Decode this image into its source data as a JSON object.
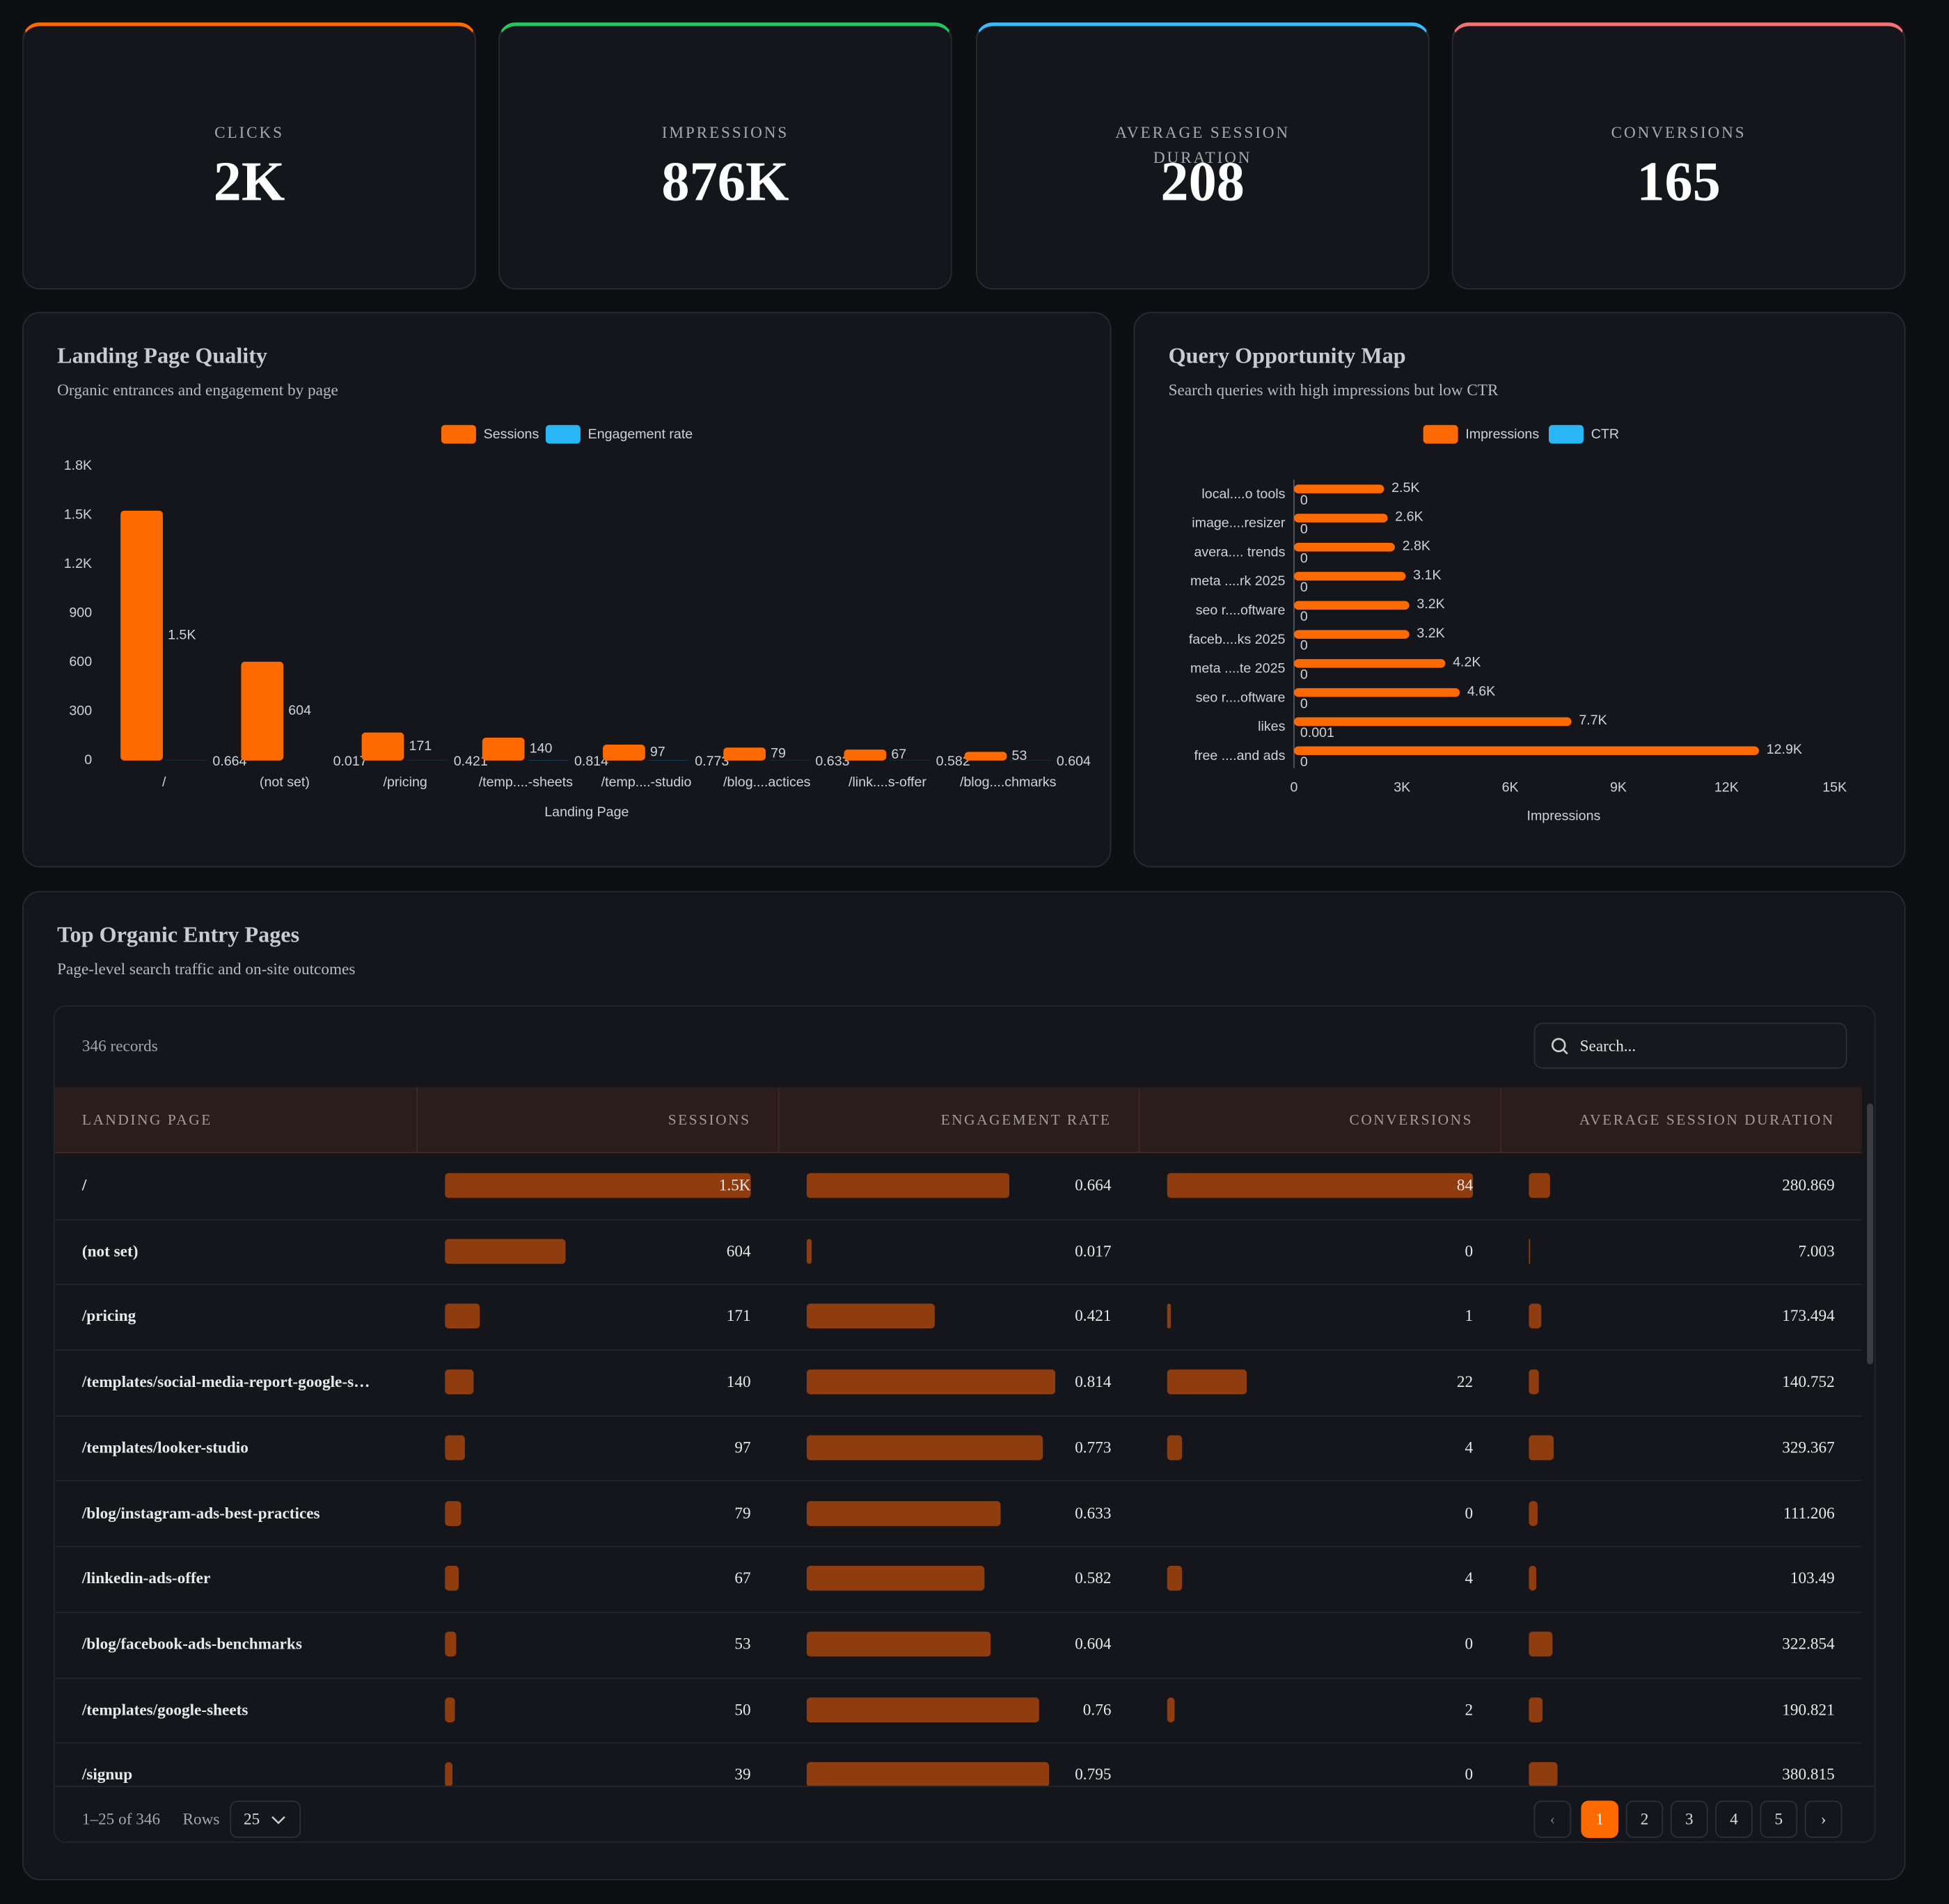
{
  "kpis": [
    {
      "label": "CLICKS",
      "value": "2K"
    },
    {
      "label": "IMPRESSIONS",
      "value": "876K"
    },
    {
      "label": "AVERAGE SESSION DURATION",
      "value": "208"
    },
    {
      "label": "CONVERSIONS",
      "value": "165"
    }
  ],
  "landing_chart": {
    "type": "bar",
    "title": "Landing Page Quality",
    "subtitle": "Organic entrances and engagement by page",
    "x_label": "Landing Page",
    "categories": [
      "/",
      "(not set)",
      "/pricing",
      "/temp....-sheets",
      "/temp....-studio",
      "/blog....actices",
      "/link....s-offer",
      "/blog....chmarks"
    ],
    "series": [
      {
        "name": "Sessions",
        "color": "#ff6a00",
        "values": [
          1527,
          604,
          171,
          140,
          97,
          79,
          67,
          53
        ],
        "value_labels": [
          "1.5K",
          "604",
          "171",
          "140",
          "97",
          "79",
          "67",
          "53"
        ]
      },
      {
        "name": "Engagement rate",
        "color": "#29b6f6",
        "values": [
          0.664,
          0.017,
          0.421,
          0.814,
          0.773,
          0.633,
          0.582,
          0.604
        ]
      }
    ],
    "ylim": [
      0,
      1800
    ],
    "yticks": [
      0,
      300,
      600,
      900,
      {
        "value": 1200,
        "label": "1.2K"
      },
      {
        "value": 1500,
        "label": "1.5K"
      },
      {
        "value": 1800,
        "label": "1.8K"
      }
    ]
  },
  "query_chart": {
    "type": "barh",
    "title": "Query Opportunity Map",
    "subtitle": "Search queries with high impressions but low CTR",
    "x_label": "Impressions",
    "categories": [
      "local....o tools",
      "image....resizer",
      "avera.... trends",
      "meta ....rk 2025",
      "seo r....oftware",
      "faceb....ks 2025",
      "meta ....te 2025",
      "seo r....oftware",
      "likes",
      "free ....and ads"
    ],
    "series": [
      {
        "name": "Impressions",
        "color": "#ff6a00",
        "values": [
          2500,
          2600,
          2800,
          3100,
          3200,
          3200,
          4200,
          4600,
          7700,
          12900
        ],
        "value_labels": [
          "2.5K",
          "2.6K",
          "2.8K",
          "3.1K",
          "3.2K",
          "3.2K",
          "4.2K",
          "4.6K",
          "7.7K",
          "12.9K"
        ]
      },
      {
        "name": "CTR",
        "color": "#29b6f6",
        "values": [
          0,
          0,
          0,
          0,
          0,
          0,
          0,
          0,
          0.001,
          0
        ]
      }
    ],
    "xlim": [
      0,
      15000
    ],
    "xticks": [
      0,
      {
        "value": 3000,
        "label": "3K"
      },
      {
        "value": 6000,
        "label": "6K"
      },
      {
        "value": 9000,
        "label": "9K"
      },
      {
        "value": 12000,
        "label": "12K"
      },
      {
        "value": 15000,
        "label": "15K"
      }
    ]
  },
  "table": {
    "title": "Top Organic Entry Pages",
    "subtitle": "Page-level search traffic and on-site outcomes",
    "records": "346 records",
    "search_placeholder": "Search...",
    "columns": [
      "LANDING PAGE",
      "SESSIONS",
      "ENGAGEMENT RATE",
      "CONVERSIONS",
      "AVERAGE SESSION DURATION"
    ],
    "rows": [
      [
        "/",
        {
          "value": 1527,
          "label": "1.5K"
        },
        0.664,
        84,
        280.869
      ],
      [
        "(not set)",
        604,
        0.017,
        0,
        7.003
      ],
      [
        "/pricing",
        171,
        0.421,
        1,
        173.494
      ],
      [
        "/templates/social-media-report-google-s…",
        140,
        0.814,
        22,
        140.752
      ],
      [
        "/templates/looker-studio",
        97,
        0.773,
        4,
        329.367
      ],
      [
        "/blog/instagram-ads-best-practices",
        79,
        0.633,
        0,
        111.206
      ],
      [
        "/linkedin-ads-offer",
        67,
        0.582,
        4,
        103.49
      ],
      [
        "/blog/facebook-ads-benchmarks",
        53,
        0.604,
        0,
        322.854
      ],
      [
        "/templates/google-sheets",
        50,
        0.76,
        2,
        190.821
      ],
      [
        "/signup",
        39,
        0.795,
        0,
        380.815
      ]
    ],
    "range": "1–25 of 346",
    "rows_label": "Rows",
    "rows_per_page": "25",
    "pages": [
      1,
      2,
      3,
      4,
      5
    ]
  }
}
